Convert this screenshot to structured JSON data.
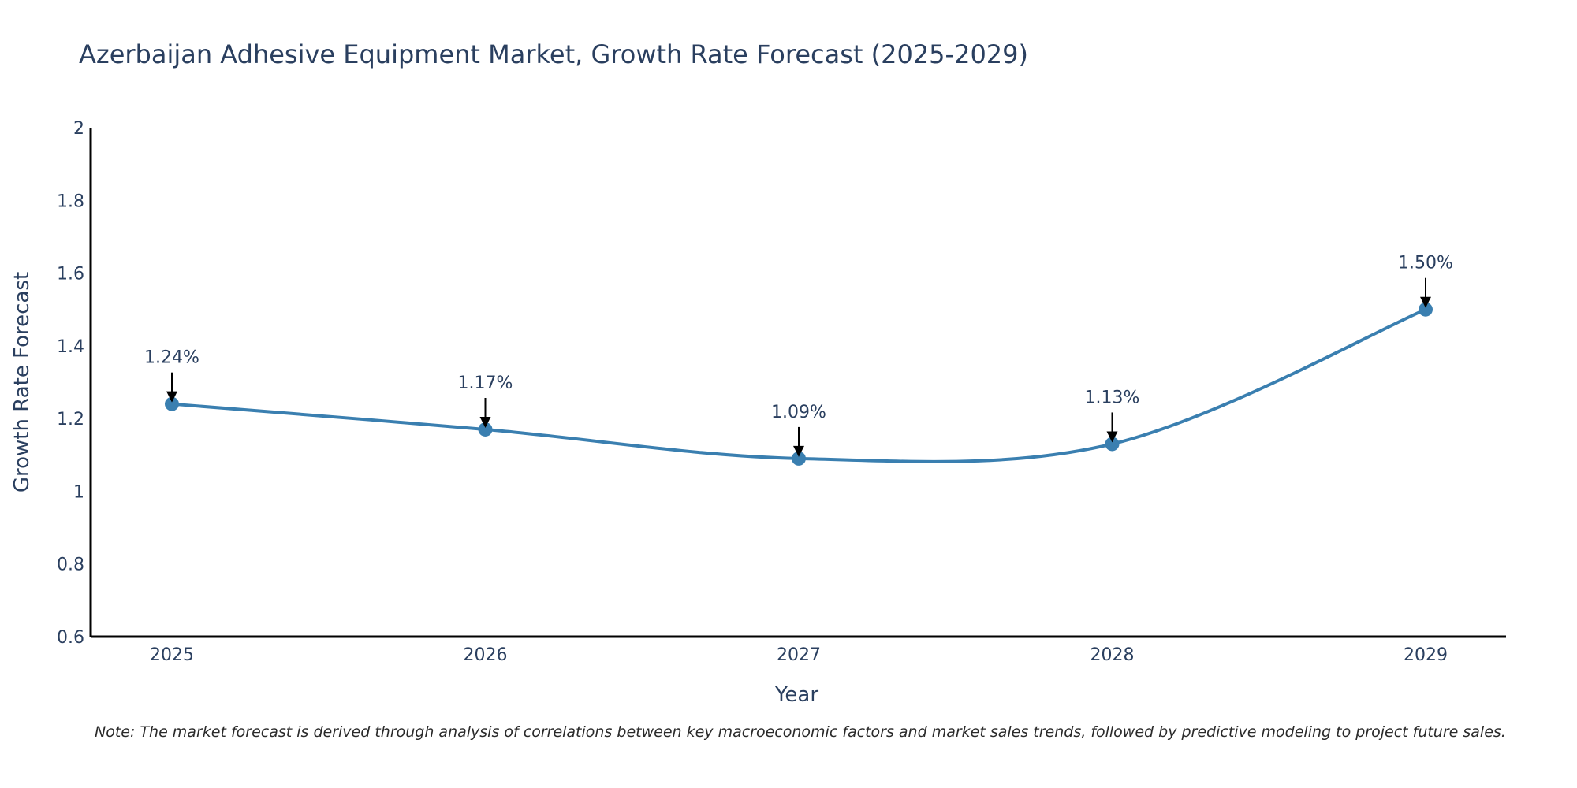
{
  "chart_data": {
    "type": "line",
    "title": "Azerbaijan Adhesive Equipment Market, Growth Rate Forecast (2025-2029)",
    "xlabel": "Year",
    "ylabel": "Growth Rate Forecast",
    "categories": [
      "2025",
      "2026",
      "2027",
      "2028",
      "2029"
    ],
    "series": [
      {
        "name": "Growth Rate Forecast",
        "values": [
          1.24,
          1.17,
          1.09,
          1.13,
          1.5
        ]
      }
    ],
    "data_labels": [
      "1.24%",
      "1.17%",
      "1.09%",
      "1.13%",
      "1.50%"
    ],
    "ylim": [
      0.6,
      2.0
    ],
    "yticks": [
      0.6,
      0.8,
      1,
      1.2,
      1.4,
      1.6,
      1.8,
      2
    ],
    "ytick_labels": [
      "0.6",
      "0.8",
      "1",
      "1.2",
      "1.4",
      "1.6",
      "1.8",
      "2"
    ],
    "grid": false,
    "line_shape": "spline",
    "color": "#3a7fb0"
  },
  "note": "Note: The market forecast is derived through analysis of correlations between key macroeconomic factors and market sales trends, followed by predictive modeling to project future sales."
}
